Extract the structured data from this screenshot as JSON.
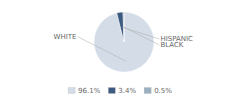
{
  "chart_data": {
    "type": "pie",
    "categories": [
      "WHITE",
      "HISPANIC",
      "BLACK"
    ],
    "values": [
      96.1,
      3.4,
      0.5
    ],
    "value_labels": [
      "96.1%",
      "3.4%",
      "0.5%"
    ],
    "colors": [
      "#d4dce8",
      "#3d5a80",
      "#9aafc0"
    ],
    "legend": "bottom"
  }
}
